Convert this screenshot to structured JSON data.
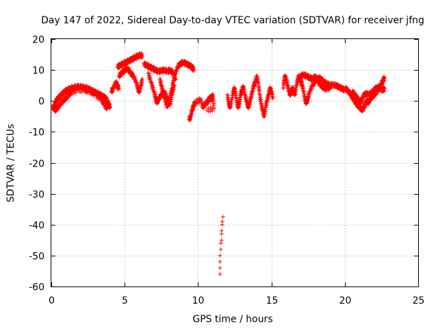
{
  "chart_data": {
    "type": "scatter",
    "title": "Day 147 of 2022, Sidereal Day-to-day VTEC variation (SDTVAR) for receiver jfng",
    "xlabel": "GPS time / hours",
    "ylabel": "SDTVAR / TECUs",
    "xlim": [
      0,
      25
    ],
    "ylim": [
      -60,
      20
    ],
    "xticks": [
      0,
      5,
      10,
      15,
      20,
      25
    ],
    "xtick_labels": [
      "0",
      "5",
      "10",
      "15",
      "20",
      "25"
    ],
    "yticks": [
      -60,
      -50,
      -40,
      -30,
      -20,
      -10,
      0,
      10,
      20
    ],
    "ytick_labels": [
      "-60",
      "-50",
      "-40",
      "-30",
      "-20",
      "-10",
      "0",
      "10",
      "20"
    ],
    "grid": true,
    "marker": "+",
    "color": "#ff0000",
    "segments": [
      {
        "name": "arc-a",
        "points": [
          [
            0.1,
            -2.5
          ],
          [
            0.2,
            -1.5
          ],
          [
            0.3,
            -0.5
          ],
          [
            0.4,
            0.5
          ],
          [
            0.5,
            1.0
          ],
          [
            0.7,
            2.0
          ],
          [
            0.9,
            3.0
          ],
          [
            1.1,
            3.5
          ],
          [
            1.3,
            4.0
          ],
          [
            1.5,
            4.2
          ],
          [
            1.7,
            4.5
          ],
          [
            1.9,
            4.6
          ],
          [
            2.1,
            4.5
          ],
          [
            2.3,
            4.2
          ],
          [
            2.5,
            4.0
          ],
          [
            2.7,
            3.5
          ],
          [
            2.9,
            3.0
          ],
          [
            3.1,
            2.5
          ],
          [
            3.3,
            2.0
          ],
          [
            3.5,
            1.5
          ],
          [
            3.7,
            1.0
          ],
          [
            3.8,
            0.0
          ],
          [
            3.9,
            -1.0
          ],
          [
            4.0,
            -2.0
          ]
        ]
      },
      {
        "name": "arc-a-lower",
        "points": [
          [
            0.2,
            -3.0
          ],
          [
            0.4,
            -2.5
          ],
          [
            0.6,
            -1.0
          ],
          [
            0.8,
            0.0
          ],
          [
            1.0,
            1.0
          ],
          [
            1.2,
            2.0
          ],
          [
            1.4,
            3.0
          ],
          [
            1.8,
            3.5
          ],
          [
            2.2,
            3.5
          ],
          [
            2.6,
            3.0
          ],
          [
            3.0,
            2.0
          ],
          [
            3.4,
            0.5
          ],
          [
            3.6,
            -1.0
          ],
          [
            3.8,
            -2.5
          ]
        ]
      },
      {
        "name": "arc-b",
        "points": [
          [
            4.1,
            3.0
          ],
          [
            4.2,
            4.0
          ],
          [
            4.4,
            6.0
          ],
          [
            4.5,
            5.0
          ],
          [
            4.6,
            4.0
          ]
        ]
      },
      {
        "name": "arc-c",
        "points": [
          [
            4.5,
            11.0
          ],
          [
            4.7,
            11.5
          ],
          [
            4.9,
            12.0
          ],
          [
            5.1,
            12.5
          ],
          [
            5.3,
            13.0
          ],
          [
            5.5,
            13.5
          ],
          [
            5.7,
            14.0
          ],
          [
            5.9,
            14.5
          ],
          [
            6.1,
            14.8
          ],
          [
            6.2,
            14.5
          ]
        ]
      },
      {
        "name": "arc-c-lower",
        "points": [
          [
            4.6,
            8.0
          ],
          [
            4.8,
            9.0
          ],
          [
            5.0,
            10.0
          ],
          [
            5.2,
            10.5
          ],
          [
            5.4,
            9.0
          ],
          [
            5.6,
            8.0
          ],
          [
            5.8,
            6.0
          ],
          [
            5.9,
            4.0
          ],
          [
            6.0,
            3.0
          ],
          [
            6.1,
            5.0
          ],
          [
            6.2,
            7.0
          ]
        ]
      },
      {
        "name": "arc-d",
        "points": [
          [
            6.3,
            12.0
          ],
          [
            6.5,
            11.5
          ],
          [
            6.7,
            11.0
          ],
          [
            6.9,
            10.5
          ],
          [
            7.1,
            10.0
          ],
          [
            7.3,
            9.5
          ],
          [
            7.5,
            9.8
          ],
          [
            7.7,
            10.0
          ],
          [
            7.9,
            9.5
          ],
          [
            8.1,
            10.0
          ],
          [
            8.3,
            9.0
          ],
          [
            8.5,
            7.0
          ]
        ]
      },
      {
        "name": "arc-e",
        "points": [
          [
            6.6,
            9.0
          ],
          [
            6.8,
            6.0
          ],
          [
            7.0,
            3.0
          ],
          [
            7.1,
            1.0
          ],
          [
            7.2,
            -0.5
          ],
          [
            7.3,
            0.5
          ],
          [
            7.5,
            2.0
          ],
          [
            7.7,
            3.0
          ],
          [
            7.9,
            1.0
          ],
          [
            8.0,
            0.0
          ],
          [
            8.1,
            -1.0
          ],
          [
            8.2,
            2.0
          ],
          [
            8.4,
            5.0
          ]
        ]
      },
      {
        "name": "arc-f",
        "points": [
          [
            7.4,
            7.0
          ],
          [
            7.5,
            5.0
          ],
          [
            7.6,
            3.0
          ],
          [
            7.7,
            1.0
          ],
          [
            7.9,
            -2.0
          ],
          [
            8.1,
            1.0
          ],
          [
            8.2,
            4.0
          ],
          [
            8.4,
            8.0
          ],
          [
            8.6,
            11.0
          ],
          [
            8.8,
            12.0
          ],
          [
            9.0,
            12.5
          ],
          [
            9.2,
            12.0
          ],
          [
            9.4,
            11.5
          ],
          [
            9.6,
            11.0
          ],
          [
            9.7,
            10.0
          ]
        ]
      },
      {
        "name": "arc-g",
        "points": [
          [
            9.4,
            -6.0
          ],
          [
            9.5,
            -5.0
          ],
          [
            9.6,
            -3.0
          ],
          [
            9.7,
            -1.5
          ],
          [
            9.8,
            -0.5
          ],
          [
            10.2,
            0.5
          ],
          [
            10.3,
            -2.0
          ],
          [
            10.5,
            -1.0
          ],
          [
            10.7,
            0.0
          ],
          [
            10.8,
            1.0
          ],
          [
            10.9,
            0.5
          ],
          [
            11.0,
            2.0
          ],
          [
            11.1,
            -2.5
          ],
          [
            10.6,
            -3.0
          ]
        ]
      },
      {
        "name": "outliers",
        "points": [
          [
            11.5,
            -56.0
          ],
          [
            11.5,
            -54.0
          ],
          [
            11.5,
            -52.0
          ],
          [
            11.5,
            -50.0
          ],
          [
            11.55,
            -48.0
          ],
          [
            11.55,
            -46.0
          ],
          [
            11.6,
            -45.0
          ],
          [
            11.6,
            -43.0
          ],
          [
            11.6,
            -42.0
          ],
          [
            11.65,
            -40.0
          ],
          [
            11.65,
            -39.0
          ],
          [
            11.7,
            -37.5
          ]
        ]
      },
      {
        "name": "arc-h",
        "points": [
          [
            12.0,
            2.0
          ],
          [
            12.1,
            -1.0
          ],
          [
            12.2,
            -2.0
          ],
          [
            12.3,
            0.5
          ],
          [
            12.4,
            3.0
          ],
          [
            12.5,
            4.0
          ],
          [
            12.6,
            1.0
          ],
          [
            12.7,
            -2.0
          ],
          [
            12.8,
            -1.0
          ],
          [
            12.9,
            2.0
          ],
          [
            13.0,
            3.5
          ],
          [
            13.1,
            4.5
          ],
          [
            13.2,
            2.0
          ],
          [
            13.3,
            0.0
          ],
          [
            13.4,
            -2.0
          ],
          [
            13.5,
            -1.0
          ],
          [
            13.6,
            1.0
          ],
          [
            13.7,
            3.0
          ],
          [
            13.8,
            5.0
          ],
          [
            13.9,
            6.0
          ],
          [
            14.0,
            8.0
          ],
          [
            14.1,
            6.0
          ],
          [
            14.2,
            2.0
          ],
          [
            14.3,
            -1.0
          ],
          [
            14.4,
            -3.0
          ],
          [
            14.5,
            -5.0
          ],
          [
            14.6,
            -2.0
          ],
          [
            14.7,
            0.0
          ],
          [
            14.8,
            2.0
          ],
          [
            14.9,
            4.0
          ],
          [
            15.0,
            3.0
          ],
          [
            15.1,
            1.0
          ]
        ]
      },
      {
        "name": "arc-i",
        "points": [
          [
            15.8,
            4.0
          ],
          [
            15.9,
            8.0
          ],
          [
            16.0,
            7.0
          ],
          [
            16.1,
            5.0
          ],
          [
            16.2,
            3.0
          ],
          [
            16.3,
            2.0
          ],
          [
            16.4,
            4.0
          ],
          [
            16.5,
            3.5
          ],
          [
            16.6,
            2.0
          ],
          [
            16.7,
            5.0
          ],
          [
            16.8,
            7.0
          ],
          [
            16.9,
            8.0
          ],
          [
            17.0,
            6.5
          ],
          [
            17.1,
            5.0
          ],
          [
            17.2,
            3.0
          ],
          [
            17.3,
            0.0
          ],
          [
            17.4,
            -0.5
          ],
          [
            17.5,
            1.0
          ],
          [
            17.6,
            3.0
          ],
          [
            17.8,
            5.0
          ],
          [
            18.0,
            6.5
          ],
          [
            18.2,
            7.5
          ],
          [
            18.4,
            7.0
          ],
          [
            18.6,
            6.0
          ],
          [
            18.8,
            5.5
          ],
          [
            19.0,
            5.0
          ],
          [
            19.2,
            5.2
          ],
          [
            19.4,
            5.0
          ],
          [
            19.6,
            4.5
          ],
          [
            19.8,
            4.0
          ],
          [
            20.0,
            3.5
          ]
        ]
      },
      {
        "name": "arc-j",
        "points": [
          [
            17.0,
            8.0
          ],
          [
            17.2,
            8.5
          ],
          [
            17.4,
            8.0
          ],
          [
            17.6,
            7.5
          ],
          [
            17.8,
            7.0
          ],
          [
            18.0,
            8.0
          ],
          [
            18.2,
            6.0
          ],
          [
            18.4,
            5.0
          ],
          [
            18.6,
            4.0
          ],
          [
            18.8,
            4.0
          ],
          [
            19.0,
            4.5
          ]
        ]
      },
      {
        "name": "arc-k",
        "points": [
          [
            20.0,
            4.0
          ],
          [
            20.2,
            3.5
          ],
          [
            20.4,
            2.0
          ],
          [
            20.6,
            0.5
          ],
          [
            20.8,
            -1.0
          ],
          [
            21.0,
            -2.0
          ],
          [
            21.2,
            -3.0
          ],
          [
            21.3,
            -2.0
          ],
          [
            21.4,
            -1.0
          ],
          [
            21.5,
            0.0
          ],
          [
            21.6,
            -0.5
          ],
          [
            21.7,
            0.5
          ],
          [
            21.9,
            1.5
          ],
          [
            22.0,
            2.0
          ],
          [
            22.2,
            3.0
          ],
          [
            22.4,
            4.5
          ],
          [
            22.5,
            5.5
          ],
          [
            22.6,
            6.5
          ],
          [
            22.7,
            7.5
          ]
        ]
      },
      {
        "name": "arc-l",
        "points": [
          [
            20.5,
            3.0
          ],
          [
            20.7,
            2.0
          ],
          [
            20.9,
            0.5
          ],
          [
            21.1,
            -0.5
          ],
          [
            21.2,
            1.0
          ],
          [
            21.4,
            2.5
          ],
          [
            21.6,
            2.0
          ],
          [
            21.8,
            2.5
          ],
          [
            22.0,
            3.5
          ],
          [
            22.2,
            4.5
          ],
          [
            22.4,
            4.0
          ],
          [
            22.6,
            3.5
          ],
          [
            22.7,
            4.0
          ]
        ]
      }
    ]
  }
}
